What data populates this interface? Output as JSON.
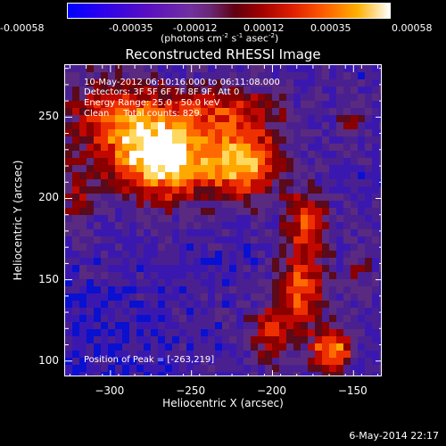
{
  "colorbar": {
    "tick_labels": [
      "-0.00058",
      "-0.00035",
      "-0.00012",
      "0.00012",
      "0.00035",
      "0.00058"
    ],
    "units_prefix": "(photons cm",
    "units_exp1": "-2",
    "units_mid": " s",
    "units_exp2": "-1",
    "units_mid2": " asec",
    "units_exp3": "-2",
    "units_suffix": ")"
  },
  "title": "Reconstructed RHESSI Image",
  "info": {
    "time": "10-May-2012 06:10:16.000 to 06:11:08.000",
    "detectors": "Detectors: 3F 5F 6F 7F 8F 9F, Att 0",
    "energy": "Energy Range: 25.0 - 50.0 keV",
    "clean": "Clean     Total counts: 829."
  },
  "peak_label": "Position of Peak = [-263,219]",
  "axes": {
    "xlabel": "Heliocentric X (arcsec)",
    "ylabel": "Heliocentric Y (arcsec)",
    "x_ticks": [
      -300,
      -250,
      -200,
      -150
    ],
    "y_ticks": [
      100,
      150,
      200,
      250
    ],
    "x_tick_labels": [
      "−300",
      "−250",
      "−200",
      "−150"
    ],
    "y_tick_labels": [
      "100",
      "150",
      "200",
      "250"
    ],
    "xlim": [
      -328,
      -132
    ],
    "ylim": [
      90,
      282
    ]
  },
  "timestamp": "6-May-2014 22:17",
  "colors": {
    "background": "#000000",
    "foreground": "#ffffff"
  }
}
